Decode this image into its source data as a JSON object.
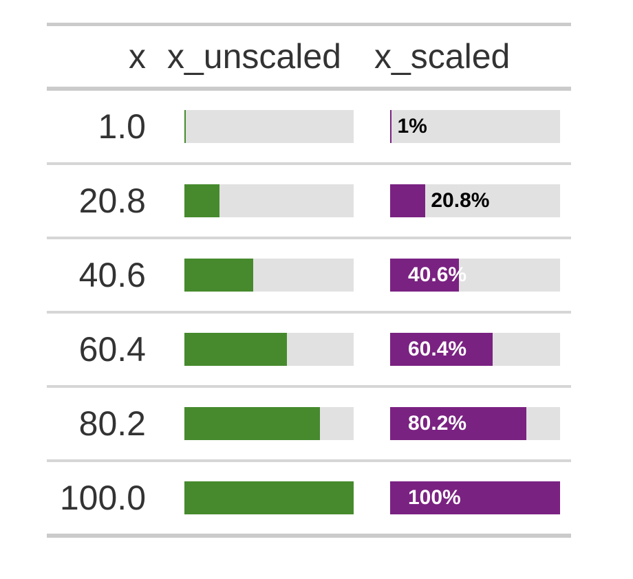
{
  "page": {
    "background": "#FFFFFF"
  },
  "table": {
    "header": {
      "x": "x",
      "x_unscaled": "x_unscaled",
      "x_scaled": "x_scaled"
    },
    "rows": [
      {
        "x": "1.0",
        "pct": 1,
        "label": "1%",
        "label_position": "outside"
      },
      {
        "x": "20.8",
        "pct": 20.8,
        "label": "20.8%",
        "label_position": "outside"
      },
      {
        "x": "40.6",
        "pct": 40.6,
        "label": "40.6%",
        "label_position": "inside"
      },
      {
        "x": "60.4",
        "pct": 60.4,
        "label": "60.4%",
        "label_position": "inside"
      },
      {
        "x": "80.2",
        "pct": 80.2,
        "label": "80.2%",
        "label_position": "inside"
      },
      {
        "x": "100.0",
        "pct": 100,
        "label": "100%",
        "label_position": "inside"
      }
    ]
  },
  "colors": {
    "unscaled_fill": "#468A2D",
    "scaled_fill": "#7A2282",
    "bar_background": "#E1E1E1",
    "table_rule": "#CBCBCB",
    "row_separator": "#D6D6D6",
    "text": "#333333",
    "label_outside": "#000000",
    "label_inside": "#FFFFFF"
  },
  "chart_data": {
    "type": "bar",
    "title": "",
    "xlabel": "",
    "ylabel": "",
    "categories": [
      "1.0",
      "20.8",
      "40.6",
      "60.4",
      "80.2",
      "100.0"
    ],
    "series": [
      {
        "name": "x_unscaled",
        "values": [
          1,
          20.8,
          40.6,
          60.4,
          80.2,
          100
        ]
      },
      {
        "name": "x_scaled",
        "values": [
          1,
          20.8,
          40.6,
          60.4,
          80.2,
          100
        ],
        "data_labels": [
          "1%",
          "20.8%",
          "40.6%",
          "60.4%",
          "80.2%",
          "100%"
        ]
      }
    ],
    "xlim": [
      0,
      100
    ],
    "grid": false,
    "legend_position": "none",
    "notes": "Table with inline percentage data bars; fills: green #468A2D (x_unscaled, unlabeled), purple #7A2282 (x_scaled, labeled), track #E1E1E1"
  }
}
